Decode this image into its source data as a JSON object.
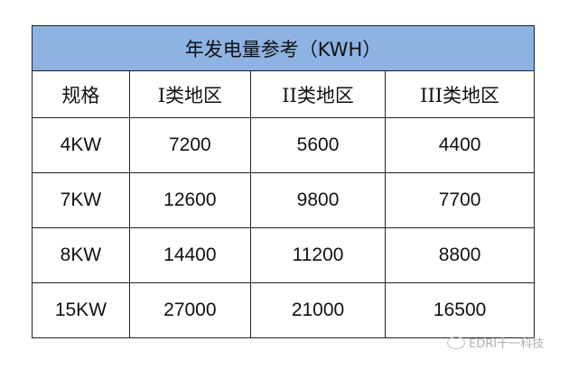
{
  "title": "年发电量参考（KWH）",
  "headers": [
    "规格",
    "I类地区",
    "II类地区",
    "III类地区"
  ],
  "rows": [
    [
      "4KW",
      "7200",
      "5600",
      "4400"
    ],
    [
      "7KW",
      "12600",
      "9800",
      "7700"
    ],
    [
      "8KW",
      "14400",
      "11200",
      "8800"
    ],
    [
      "15KW",
      "27000",
      "21000",
      "16500"
    ]
  ],
  "colors": {
    "header_bg": "#8db3e2"
  },
  "watermark": {
    "icon": "wechat-icon",
    "text": "EDRI十一科技"
  }
}
